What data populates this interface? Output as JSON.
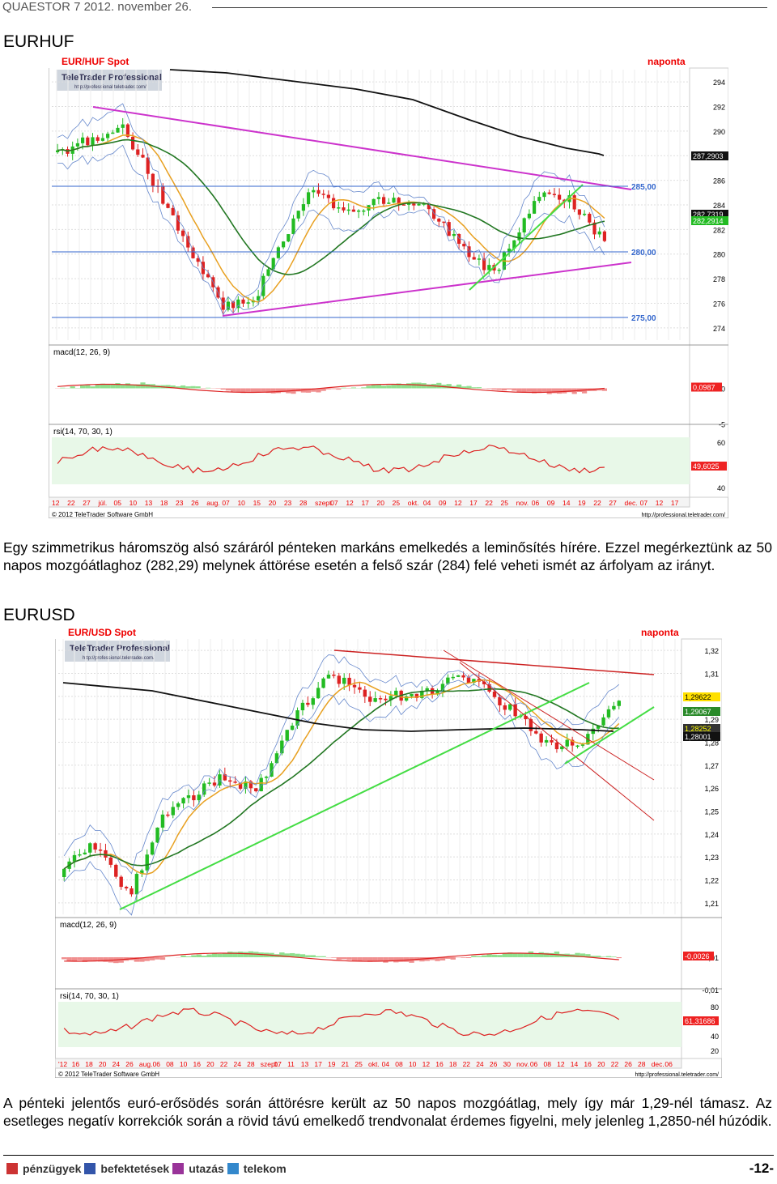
{
  "header": {
    "text": "QUAESTOR 7   2012. november 26."
  },
  "sections": [
    {
      "title": "EURHUF",
      "paragraph": "Egy szimmetrikus háromszög alsó száráról pénteken markáns emelkedés a leminősítés hírére. Ezzel megérkeztünk az 50 napos mozgóátlaghoz (282,29) melynek áttörése esetén a felső szár (284) felé veheti ismét az árfolyam az irányt."
    },
    {
      "title": "EURUSD",
      "paragraph": "A pénteki jelentős euró-erősödés során áttörésre került az 50 napos mozgóátlag, mely így már 1,29-nél támasz. Az esetleges negatív korrekciók során a rövid távú emelkedő trendvonalat érdemes figyelni, mely jelenleg 1,2850-nél húzódik."
    }
  ],
  "charts": [
    {
      "title": "EUR/HUF Spot",
      "period": "naponta",
      "logo": "TeleTrader Professional",
      "logo_url": "http://professional.teletrader.com/",
      "copyright": "© 2012 TeleTrader Software GmbH",
      "source_url": "http://professional.teletrader.com/",
      "macd_label": "macd(12, 26, 9)",
      "rsi_label": "rsi(14, 70, 30, 1)",
      "price_ticks": [
        "294",
        "292",
        "290",
        "288",
        "286",
        "284",
        "282",
        "280",
        "278",
        "276",
        "274"
      ],
      "price_levels": [
        "285,00",
        "280,00",
        "275,00"
      ],
      "price_badges": [
        "287,2903",
        "282,7319",
        "282,2914"
      ],
      "macd_ticks": [
        "0",
        "-5"
      ],
      "macd_badge": "0,0987",
      "rsi_ticks": [
        "60",
        "40"
      ],
      "rsi_badge": "49,6025",
      "x_ticks": [
        "12",
        "22",
        "27",
        "júl.",
        "05",
        "10",
        "13",
        "18",
        "23",
        "26",
        "aug.",
        "07",
        "10",
        "15",
        "20",
        "23",
        "28",
        "szept.",
        "07",
        "12",
        "17",
        "20",
        "25",
        "okt.",
        "04",
        "09",
        "12",
        "17",
        "22",
        "25",
        "nov.",
        "06",
        "09",
        "14",
        "19",
        "22",
        "27",
        "dec.",
        "07",
        "12",
        "17"
      ]
    },
    {
      "title": "EUR/USD Spot",
      "period": "naponta",
      "logo": "TeleTrader Professional",
      "logo_url": "http://professional.teletrader.com/",
      "copyright": "© 2012 TeleTrader Software GmbH",
      "source_url": "http://professional.teletrader.com/",
      "macd_label": "macd(12, 26, 9)",
      "rsi_label": "rsi(14, 70, 30, 1)",
      "price_ticks": [
        "1,32",
        "1,31",
        "1,30",
        "1,29",
        "1,28",
        "1,27",
        "1,26",
        "1,25",
        "1,24",
        "1,23",
        "1,22",
        "1,21"
      ],
      "price_badges": [
        "1,29622",
        "1,29067",
        "1,28252",
        "1,28001"
      ],
      "macd_ticks": [
        "0,01",
        "-0,01"
      ],
      "macd_badge": "-0,0026",
      "rsi_ticks": [
        "80",
        "60",
        "40",
        "20"
      ],
      "rsi_badge": "61,31686",
      "x_ticks": [
        "'12",
        "16",
        "18",
        "20",
        "24",
        "26",
        "aug.",
        "06",
        "08",
        "10",
        "16",
        "20",
        "22",
        "24",
        "28",
        "szept.",
        "07",
        "11",
        "13",
        "17",
        "19",
        "21",
        "25",
        "okt.",
        "04",
        "08",
        "10",
        "12",
        "16",
        "18",
        "22",
        "24",
        "26",
        "30",
        "nov.",
        "06",
        "08",
        "12",
        "14",
        "16",
        "20",
        "22",
        "26",
        "28",
        "dec.",
        "06"
      ]
    }
  ],
  "footer": {
    "menu": [
      "pénzügyek",
      "befektetések",
      "utazás",
      "telekom"
    ],
    "page": "-12-"
  },
  "colors": {
    "bull": "#22bb22",
    "bear": "#dd2222",
    "trend_magenta": "#cc33cc",
    "trend_green": "#44dd44",
    "trend_red": "#cc2222",
    "level_blue": "#3366cc",
    "ma_orange": "#e8a020",
    "ma_green": "#227722",
    "ma_black": "#111111",
    "bollinger": "#6688cc",
    "grid": "#dddddd",
    "title_red": "#ee0000"
  }
}
